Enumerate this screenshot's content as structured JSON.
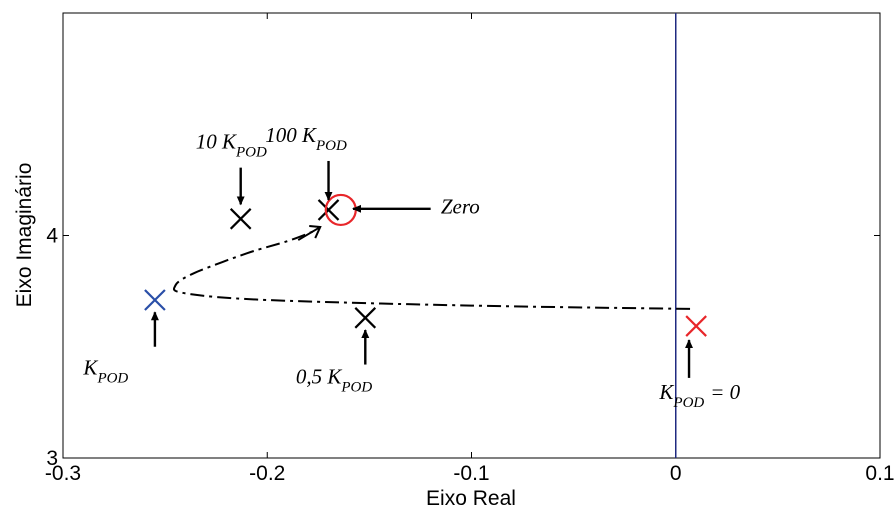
{
  "chart_data": {
    "type": "scatter",
    "title": "",
    "xlabel": "Eixo Real",
    "ylabel": "Eixo Imaginário",
    "xlim": [
      -0.3,
      0.1
    ],
    "ylim": [
      3,
      5
    ],
    "grid": false,
    "xticks": [
      {
        "value": -0.3,
        "label": "-0.3"
      },
      {
        "value": -0.2,
        "label": "-0.2"
      },
      {
        "value": -0.1,
        "label": "-0.1"
      },
      {
        "value": 0,
        "label": "0"
      },
      {
        "value": 0.1,
        "label": "0.1"
      }
    ],
    "yticks": [
      {
        "value": 3,
        "label": "3"
      },
      {
        "value": 4,
        "label": "4"
      }
    ],
    "reference_line": {
      "axis": "x",
      "value": 0,
      "color": "#1f2a80"
    },
    "locus": {
      "color": "#000000",
      "style": "dash-dot",
      "points": [
        {
          "x": 0.007,
          "y": 3.67
        },
        {
          "x": -0.1,
          "y": 3.685
        },
        {
          "x": -0.2,
          "y": 3.71
        },
        {
          "x": -0.24,
          "y": 3.74
        },
        {
          "x": -0.245,
          "y": 3.775
        },
        {
          "x": -0.236,
          "y": 3.83
        },
        {
          "x": -0.21,
          "y": 3.92
        },
        {
          "x": -0.19,
          "y": 3.975
        },
        {
          "x": -0.177,
          "y": 4.02
        }
      ]
    },
    "markers": [
      {
        "x": 0.01,
        "y": 3.593,
        "color": "#e8262a",
        "symbol": "x",
        "label": "K_POD = 0"
      },
      {
        "x": -0.152,
        "y": 3.63,
        "color": "#000000",
        "symbol": "x",
        "label": "0,5 K_POD"
      },
      {
        "x": -0.255,
        "y": 3.71,
        "color": "#2a4fa8",
        "symbol": "x",
        "label": "K_POD"
      },
      {
        "x": -0.213,
        "y": 4.075,
        "color": "#000000",
        "symbol": "x",
        "label": "10 K_POD"
      },
      {
        "x": -0.17,
        "y": 4.115,
        "color": "#000000",
        "symbol": "x",
        "label": "100 K_POD"
      },
      {
        "x": -0.164,
        "y": 4.115,
        "color": "#e8262a",
        "symbol": "o",
        "label": "Zero"
      }
    ],
    "annotations": [
      {
        "text": "10 K",
        "sub": "POD",
        "tx": -0.235,
        "ty": 4.39,
        "ax1": -0.213,
        "ay1": 4.305,
        "ax2": -0.213,
        "ay2": 4.14
      },
      {
        "text": "100 K",
        "sub": "POD",
        "tx": -0.201,
        "ty": 4.42,
        "ax1": -0.17,
        "ay1": 4.335,
        "ax2": -0.17,
        "ay2": 4.16
      },
      {
        "text": "Zero",
        "sub": "",
        "tx": -0.115,
        "ty": 4.1,
        "ax1": -0.12,
        "ay1": 4.12,
        "ax2": -0.158,
        "ay2": 4.12
      },
      {
        "text": "K",
        "sub": "POD",
        "tx": -0.29,
        "ty": 3.375,
        "ax1": -0.255,
        "ay1": 3.5,
        "ax2": -0.255,
        "ay2": 3.655
      },
      {
        "text": "0,5 K",
        "sub": "POD",
        "tx": -0.186,
        "ty": 3.335,
        "ax1": -0.152,
        "ay1": 3.42,
        "ax2": -0.152,
        "ay2": 3.575
      },
      {
        "text": "K",
        "sub": "POD",
        "tx": -0.008,
        "ty": 3.265,
        "ax1": 0.0065,
        "ay1": 3.36,
        "ax2": 0.0065,
        "ay2": 3.53,
        "suffix": "= 0"
      }
    ]
  }
}
